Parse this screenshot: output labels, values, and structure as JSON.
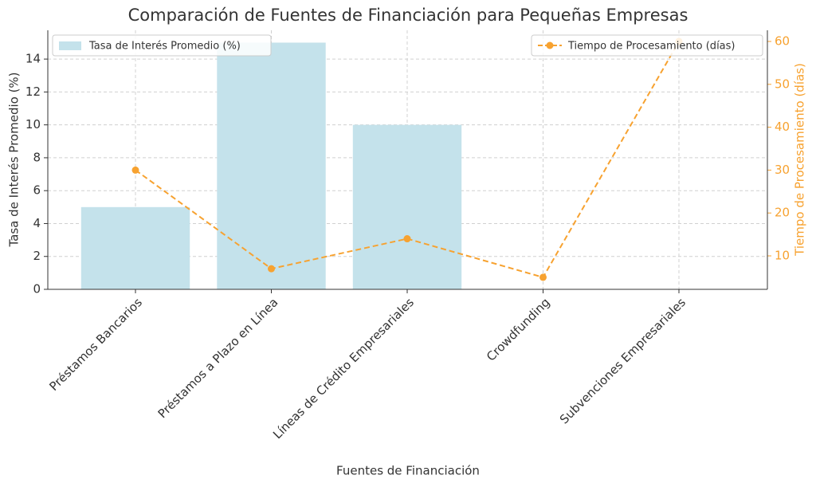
{
  "chart_data": {
    "type": "bar",
    "title": "Comparación de Fuentes de Financiación para Pequeñas Empresas",
    "x_label": "Fuentes de Financiación",
    "y_label": "Tasa de Interés Promedio (%)",
    "y2_label": "Tiempo de Procesamiento (días)",
    "categories": [
      "Préstamos Bancarios",
      "Préstamos a Plazo en Línea",
      "Líneas de Crédito Empresariales",
      "Crowdfunding",
      "Subvenciones Empresariales"
    ],
    "series": [
      {
        "name": "Tasa de Interés Promedio (%)",
        "type": "bar",
        "color": "#c4e2eb",
        "values": [
          5,
          15,
          10,
          0,
          0
        ],
        "legend": "upper left"
      },
      {
        "name": "Tiempo de Procesamiento (días)",
        "type": "line",
        "axis": "y2",
        "color": "#f7a230",
        "values": [
          30,
          7,
          14,
          5,
          60
        ],
        "legend": "upper right"
      }
    ],
    "ylim": [
      0,
      15.75
    ],
    "yticks": [
      0,
      2,
      4,
      6,
      8,
      10,
      12,
      14
    ],
    "y2lim": [
      2.2,
      62.6
    ],
    "y2ticks": [
      10,
      20,
      30,
      40,
      50,
      60
    ],
    "grid": true
  }
}
